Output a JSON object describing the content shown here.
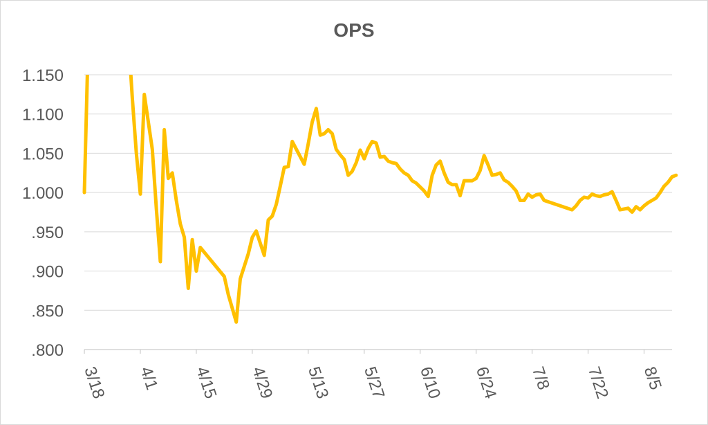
{
  "chart_data": {
    "type": "line",
    "title": "OPS",
    "xlabel": "",
    "ylabel": "",
    "ylim": [
      0.8,
      1.15
    ],
    "x_range": [
      "3/18",
      "8/12"
    ],
    "y_ticks": [
      ".800",
      ".850",
      ".900",
      ".950",
      "1.000",
      "1.050",
      "1.100",
      "1.150"
    ],
    "y_tick_values": [
      0.8,
      0.85,
      0.9,
      0.95,
      1.0,
      1.05,
      1.1,
      1.15
    ],
    "x_ticks": [
      "3/18",
      "4/1",
      "4/15",
      "4/29",
      "5/13",
      "5/27",
      "6/10",
      "6/24",
      "7/8",
      "7/22",
      "8/5"
    ],
    "grid": true,
    "legend": "none",
    "series": [
      {
        "color": "#FFC000",
        "points": [
          [
            "3/18",
            1.0
          ],
          [
            "3/19",
            1.2
          ],
          [
            "3/29",
            1.2
          ],
          [
            "3/30",
            1.12
          ],
          [
            "3/31",
            1.05
          ],
          [
            "4/1",
            0.998
          ],
          [
            "4/2",
            1.125
          ],
          [
            "4/3",
            1.09
          ],
          [
            "4/4",
            1.055
          ],
          [
            "4/5",
            0.98
          ],
          [
            "4/6",
            0.912
          ],
          [
            "4/7",
            1.08
          ],
          [
            "4/8",
            1.018
          ],
          [
            "4/9",
            1.025
          ],
          [
            "4/10",
            0.99
          ],
          [
            "4/11",
            0.96
          ],
          [
            "4/12",
            0.943
          ],
          [
            "4/13",
            0.878
          ],
          [
            "4/14",
            0.94
          ],
          [
            "4/15",
            0.9
          ],
          [
            "4/16",
            0.93
          ],
          [
            "4/22",
            0.893
          ],
          [
            "4/23",
            0.87
          ],
          [
            "4/25",
            0.835
          ],
          [
            "4/26",
            0.89
          ],
          [
            "4/28",
            0.922
          ],
          [
            "4/29",
            0.943
          ],
          [
            "4/30",
            0.951
          ],
          [
            "5/2",
            0.92
          ],
          [
            "5/3",
            0.965
          ],
          [
            "5/4",
            0.97
          ],
          [
            "5/5",
            0.985
          ],
          [
            "5/6",
            1.008
          ],
          [
            "5/7",
            1.032
          ],
          [
            "5/8",
            1.033
          ],
          [
            "5/9",
            1.065
          ],
          [
            "5/12",
            1.036
          ],
          [
            "5/13",
            1.062
          ],
          [
            "5/14",
            1.09
          ],
          [
            "5/15",
            1.107
          ],
          [
            "5/16",
            1.073
          ],
          [
            "5/17",
            1.075
          ],
          [
            "5/18",
            1.08
          ],
          [
            "5/19",
            1.075
          ],
          [
            "5/20",
            1.055
          ],
          [
            "5/21",
            1.048
          ],
          [
            "5/22",
            1.042
          ],
          [
            "5/23",
            1.022
          ],
          [
            "5/24",
            1.027
          ],
          [
            "5/25",
            1.038
          ],
          [
            "5/26",
            1.054
          ],
          [
            "5/27",
            1.043
          ],
          [
            "5/28",
            1.056
          ],
          [
            "5/29",
            1.065
          ],
          [
            "5/30",
            1.063
          ],
          [
            "5/31",
            1.045
          ],
          [
            "6/1",
            1.046
          ],
          [
            "6/2",
            1.04
          ],
          [
            "6/3",
            1.038
          ],
          [
            "6/4",
            1.037
          ],
          [
            "6/5",
            1.03
          ],
          [
            "6/6",
            1.025
          ],
          [
            "6/7",
            1.022
          ],
          [
            "6/8",
            1.015
          ],
          [
            "6/9",
            1.012
          ],
          [
            "6/10",
            1.007
          ],
          [
            "6/11",
            1.002
          ],
          [
            "6/12",
            0.995
          ],
          [
            "6/13",
            1.022
          ],
          [
            "6/14",
            1.035
          ],
          [
            "6/15",
            1.04
          ],
          [
            "6/16",
            1.025
          ],
          [
            "6/17",
            1.013
          ],
          [
            "6/18",
            1.01
          ],
          [
            "6/19",
            1.01
          ],
          [
            "6/20",
            0.996
          ],
          [
            "6/21",
            1.015
          ],
          [
            "6/22",
            1.015
          ],
          [
            "6/23",
            1.015
          ],
          [
            "6/24",
            1.018
          ],
          [
            "6/25",
            1.028
          ],
          [
            "6/26",
            1.047
          ],
          [
            "6/27",
            1.035
          ],
          [
            "6/28",
            1.022
          ],
          [
            "6/29",
            1.023
          ],
          [
            "6/30",
            1.025
          ],
          [
            "7/1",
            1.016
          ],
          [
            "7/2",
            1.013
          ],
          [
            "7/3",
            1.008
          ],
          [
            "7/4",
            1.002
          ],
          [
            "7/5",
            0.99
          ],
          [
            "7/6",
            0.99
          ],
          [
            "7/7",
            0.998
          ],
          [
            "7/8",
            0.994
          ],
          [
            "7/9",
            0.997
          ],
          [
            "7/10",
            0.998
          ],
          [
            "7/11",
            0.99
          ],
          [
            "7/18",
            0.978
          ],
          [
            "7/19",
            0.983
          ],
          [
            "7/20",
            0.99
          ],
          [
            "7/21",
            0.994
          ],
          [
            "7/22",
            0.993
          ],
          [
            "7/23",
            0.998
          ],
          [
            "7/24",
            0.996
          ],
          [
            "7/25",
            0.995
          ],
          [
            "7/26",
            0.997
          ],
          [
            "7/27",
            0.998
          ],
          [
            "7/28",
            1.001
          ],
          [
            "7/29",
            0.99
          ],
          [
            "7/30",
            0.978
          ],
          [
            "7/31",
            0.979
          ],
          [
            "8/1",
            0.98
          ],
          [
            "8/2",
            0.975
          ],
          [
            "8/3",
            0.982
          ],
          [
            "8/4",
            0.978
          ],
          [
            "8/5",
            0.983
          ],
          [
            "8/6",
            0.987
          ],
          [
            "8/7",
            0.99
          ],
          [
            "8/8",
            0.993
          ],
          [
            "8/9",
            1.0
          ],
          [
            "8/10",
            1.008
          ],
          [
            "8/11",
            1.013
          ],
          [
            "8/12",
            1.02
          ],
          [
            "8/13",
            1.022
          ]
        ]
      }
    ]
  }
}
